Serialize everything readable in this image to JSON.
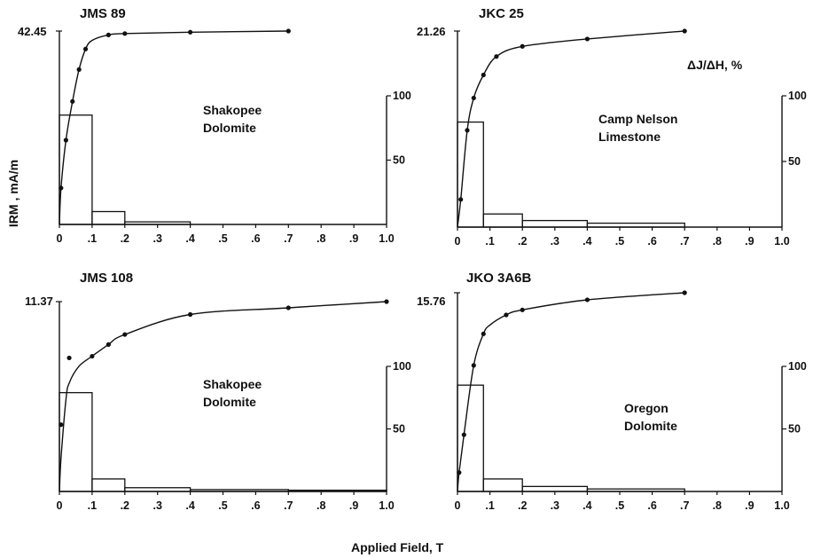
{
  "figure": {
    "xlabel": "Applied Field,   T",
    "ylabel_left": "IRM , mA/m",
    "ylabel_right": "ΔJ/ΔH, %",
    "x_tick_labels": [
      "0",
      ".1",
      ".2",
      ".3",
      ".4",
      ".5",
      ".6",
      ".7",
      ".8",
      ".9",
      "1.0"
    ],
    "right_tick_labels": [
      "50",
      "100"
    ]
  },
  "chart_data": [
    {
      "type": "line",
      "title": "JMS 89",
      "label_lines": [
        "Shakopee",
        "Dolomite"
      ],
      "x_range": [
        0,
        1.0
      ],
      "ymax_label": "42.45",
      "ymax": 42.45,
      "right_range": [
        0,
        100
      ],
      "curve": {
        "x": [
          0,
          0.005,
          0.02,
          0.04,
          0.06,
          0.08,
          0.1,
          0.15,
          0.2,
          0.4,
          0.7
        ],
        "y": [
          0,
          8.0,
          18.5,
          27.0,
          34.0,
          38.5,
          40.4,
          41.6,
          41.9,
          42.2,
          42.45
        ]
      },
      "points": {
        "x": [
          0.005,
          0.02,
          0.04,
          0.06,
          0.08,
          0.15,
          0.2,
          0.4,
          0.7
        ],
        "y": [
          8.0,
          18.5,
          27.0,
          34.0,
          38.5,
          41.6,
          41.9,
          42.2,
          42.45
        ]
      },
      "histogram": {
        "edges": [
          0,
          0.1,
          0.2,
          0.4
        ],
        "values": [
          85,
          10,
          2
        ]
      }
    },
    {
      "type": "line",
      "title": "JKC 25",
      "label_lines": [
        "Camp Nelson",
        "Limestone"
      ],
      "x_range": [
        0,
        1.0
      ],
      "ymax_label": "21.26",
      "ymax": 21.26,
      "right_range": [
        0,
        100
      ],
      "curve": {
        "x": [
          0,
          0.01,
          0.03,
          0.05,
          0.08,
          0.12,
          0.2,
          0.4,
          0.7
        ],
        "y": [
          0,
          3.0,
          10.5,
          14.0,
          16.5,
          18.5,
          19.6,
          20.4,
          21.26
        ]
      },
      "points": {
        "x": [
          0.01,
          0.03,
          0.05,
          0.08,
          0.12,
          0.2,
          0.4,
          0.7
        ],
        "y": [
          3.0,
          10.5,
          14.0,
          16.5,
          18.5,
          19.6,
          20.4,
          21.26
        ]
      },
      "histogram": {
        "edges": [
          0,
          0.08,
          0.2,
          0.4,
          0.7
        ],
        "values": [
          80,
          10,
          5,
          3
        ]
      }
    },
    {
      "type": "line",
      "title": "JMS 108",
      "label_lines": [
        "Shakopee",
        "Dolomite"
      ],
      "x_range": [
        0,
        1.0
      ],
      "ymax_label": "11.37",
      "ymax": 11.37,
      "right_range": [
        0,
        100
      ],
      "curve": {
        "x": [
          0,
          0.005,
          0.02,
          0.03,
          0.06,
          0.1,
          0.15,
          0.2,
          0.4,
          0.7,
          1.0
        ],
        "y": [
          0,
          2.0,
          5.5,
          6.5,
          7.5,
          8.1,
          8.8,
          9.4,
          10.6,
          11.0,
          11.37
        ]
      },
      "points": {
        "x": [
          0.005,
          0.03,
          0.1,
          0.15,
          0.2,
          0.4,
          0.7,
          1.0
        ],
        "y": [
          4.0,
          8.0,
          8.1,
          8.8,
          9.4,
          10.6,
          11.0,
          11.37
        ]
      },
      "histogram": {
        "edges": [
          0,
          0.1,
          0.2,
          0.4,
          0.7,
          1.0
        ],
        "values": [
          79,
          10,
          3,
          1.5,
          1
        ]
      }
    },
    {
      "type": "line",
      "title": "JKO 3A6B",
      "label_lines": [
        "Oregon",
        "Dolomite"
      ],
      "x_range": [
        0,
        1.0
      ],
      "ymax_label": "15.76",
      "ymax": 15.76,
      "right_range": [
        0,
        100
      ],
      "curve": {
        "x": [
          0,
          0.005,
          0.02,
          0.05,
          0.08,
          0.1,
          0.15,
          0.2,
          0.4,
          0.7
        ],
        "y": [
          0,
          1.5,
          4.5,
          10.0,
          12.5,
          13.2,
          14.0,
          14.4,
          15.2,
          15.76
        ]
      },
      "points": {
        "x": [
          0.005,
          0.02,
          0.05,
          0.08,
          0.15,
          0.2,
          0.4,
          0.7
        ],
        "y": [
          1.5,
          4.5,
          10.0,
          12.5,
          14.0,
          14.4,
          15.2,
          15.76
        ]
      },
      "histogram": {
        "edges": [
          0,
          0.08,
          0.2,
          0.4,
          0.7
        ],
        "values": [
          85,
          10,
          4,
          2
        ]
      }
    }
  ]
}
